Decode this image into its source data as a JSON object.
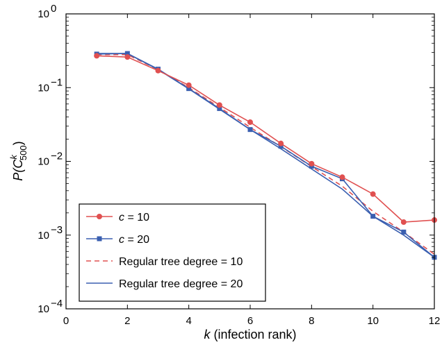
{
  "chart_data": {
    "type": "line",
    "xlabel_var": "k",
    "xlabel_rest": " (infection rank)",
    "ylabel": {
      "pre": "P(C",
      "sup": "k",
      "sub": "500",
      "post": ")"
    },
    "yscale": "log",
    "xlim": [
      0,
      12
    ],
    "ylim": [
      0.0001,
      1
    ],
    "xticks": [
      0,
      2,
      4,
      6,
      8,
      10,
      12
    ],
    "yticks": [
      {
        "value": 0.0001,
        "base": "10",
        "exp": "−4"
      },
      {
        "value": 0.001,
        "base": "10",
        "exp": "−3"
      },
      {
        "value": 0.01,
        "base": "10",
        "exp": "−2"
      },
      {
        "value": 0.1,
        "base": "10",
        "exp": "−1"
      },
      {
        "value": 1,
        "base": "10",
        "exp": "0"
      }
    ],
    "grid": false,
    "legend_position": "lower-left",
    "series": [
      {
        "name_var": "c",
        "name_rest": " = 10",
        "style": "solid",
        "marker": "circle",
        "color": "#e05050",
        "x": [
          1,
          2,
          3,
          4,
          5,
          6,
          7,
          8,
          9,
          10,
          11,
          12
        ],
        "y": [
          0.27,
          0.26,
          0.17,
          0.108,
          0.058,
          0.034,
          0.0175,
          0.0093,
          0.0061,
          0.0036,
          0.0015,
          0.0016
        ]
      },
      {
        "name_var": "c",
        "name_rest": " = 20",
        "style": "solid",
        "marker": "square",
        "color": "#3a5fb0",
        "x": [
          1,
          2,
          3,
          4,
          5,
          6,
          7,
          8,
          9,
          10,
          11,
          12
        ],
        "y": [
          0.285,
          0.29,
          0.178,
          0.097,
          0.052,
          0.027,
          0.016,
          0.0086,
          0.0058,
          0.0018,
          0.0011,
          0.0005
        ]
      },
      {
        "name_var": "",
        "name_rest": "Regular tree degree = 10",
        "style": "dashed",
        "marker": "none",
        "color": "#e05050",
        "x": [
          1,
          2,
          3,
          4,
          5,
          6,
          7,
          8,
          9,
          10,
          11,
          12
        ],
        "y": [
          0.28,
          0.28,
          0.175,
          0.1,
          0.054,
          0.029,
          0.0158,
          0.0085,
          0.0046,
          0.0021,
          0.0011,
          0.00055
        ]
      },
      {
        "name_var": "",
        "name_rest": "Regular tree degree = 20",
        "style": "solid",
        "marker": "none",
        "color": "#3a5fb0",
        "x": [
          1,
          2,
          3,
          4,
          5,
          6,
          7,
          8,
          9,
          10,
          11,
          12
        ],
        "y": [
          0.29,
          0.29,
          0.176,
          0.096,
          0.051,
          0.027,
          0.0148,
          0.0079,
          0.0042,
          0.0018,
          0.001,
          0.0005
        ]
      }
    ]
  }
}
